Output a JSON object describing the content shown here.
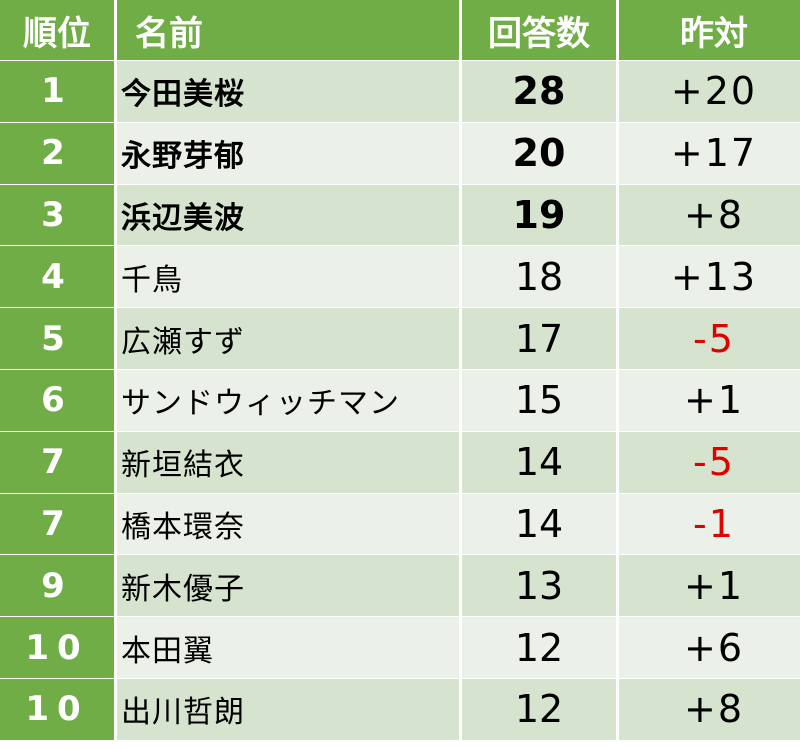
{
  "headers": {
    "rank": "順位",
    "name": "名前",
    "answers": "回答数",
    "change": "昨対"
  },
  "rows": [
    {
      "rank": "1",
      "name": "今田美桜",
      "answers": "28",
      "change": "+20",
      "bold": true,
      "negative": false
    },
    {
      "rank": "2",
      "name": "永野芽郁",
      "answers": "20",
      "change": "+17",
      "bold": true,
      "negative": false
    },
    {
      "rank": "3",
      "name": "浜辺美波",
      "answers": "19",
      "change": "+8",
      "bold": true,
      "negative": false
    },
    {
      "rank": "4",
      "name": "千鳥",
      "answers": "18",
      "change": "+13",
      "bold": false,
      "negative": false
    },
    {
      "rank": "5",
      "name": "広瀬すず",
      "answers": "17",
      "change": "-5",
      "bold": false,
      "negative": true
    },
    {
      "rank": "6",
      "name": "サンドウィッチマン",
      "answers": "15",
      "change": "+1",
      "bold": false,
      "negative": false
    },
    {
      "rank": "7",
      "name": "新垣結衣",
      "answers": "14",
      "change": "-5",
      "bold": false,
      "negative": true
    },
    {
      "rank": "7",
      "name": "橋本環奈",
      "answers": "14",
      "change": "-1",
      "bold": false,
      "negative": true
    },
    {
      "rank": "9",
      "name": "新木優子",
      "answers": "13",
      "change": "+1",
      "bold": false,
      "negative": false
    },
    {
      "rank": "10",
      "name": "本田翼",
      "answers": "12",
      "change": "+6",
      "bold": false,
      "negative": false
    },
    {
      "rank": "10",
      "name": "出川哲朗",
      "answers": "12",
      "change": "+8",
      "bold": false,
      "negative": false
    }
  ],
  "colors": {
    "header_green": "#70ad47",
    "row_odd": "#d6e4cf",
    "row_even": "#ebf1e8",
    "negative_red": "#e00000"
  }
}
